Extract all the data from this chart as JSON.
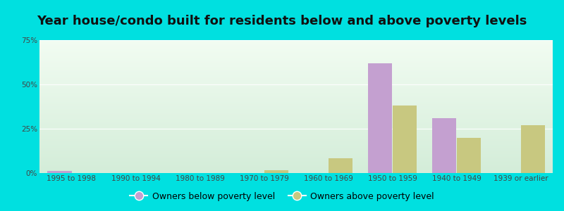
{
  "title": "Year house/condo built for residents below and above poverty levels",
  "categories": [
    "1995 to 1998",
    "1990 to 1994",
    "1980 to 1989",
    "1970 to 1979",
    "1960 to 1969",
    "1950 to 1959",
    "1940 to 1949",
    "1939 or earlier"
  ],
  "below_poverty": [
    1.0,
    0.0,
    0.0,
    0.0,
    0.0,
    62.0,
    31.0,
    0.0
  ],
  "above_poverty": [
    0.0,
    0.0,
    0.0,
    1.5,
    8.5,
    38.0,
    20.0,
    27.0
  ],
  "below_color": "#c4a0d0",
  "above_color": "#c8c880",
  "ylim": [
    0,
    75
  ],
  "yticks": [
    0,
    25,
    50,
    75
  ],
  "ytick_labels": [
    "0%",
    "25%",
    "50%",
    "75%"
  ],
  "legend_below": "Owners below poverty level",
  "legend_above": "Owners above poverty level",
  "outer_bg": "#00e0e0",
  "bar_width": 0.38,
  "title_fontsize": 13,
  "tick_fontsize": 7.5,
  "legend_fontsize": 9
}
